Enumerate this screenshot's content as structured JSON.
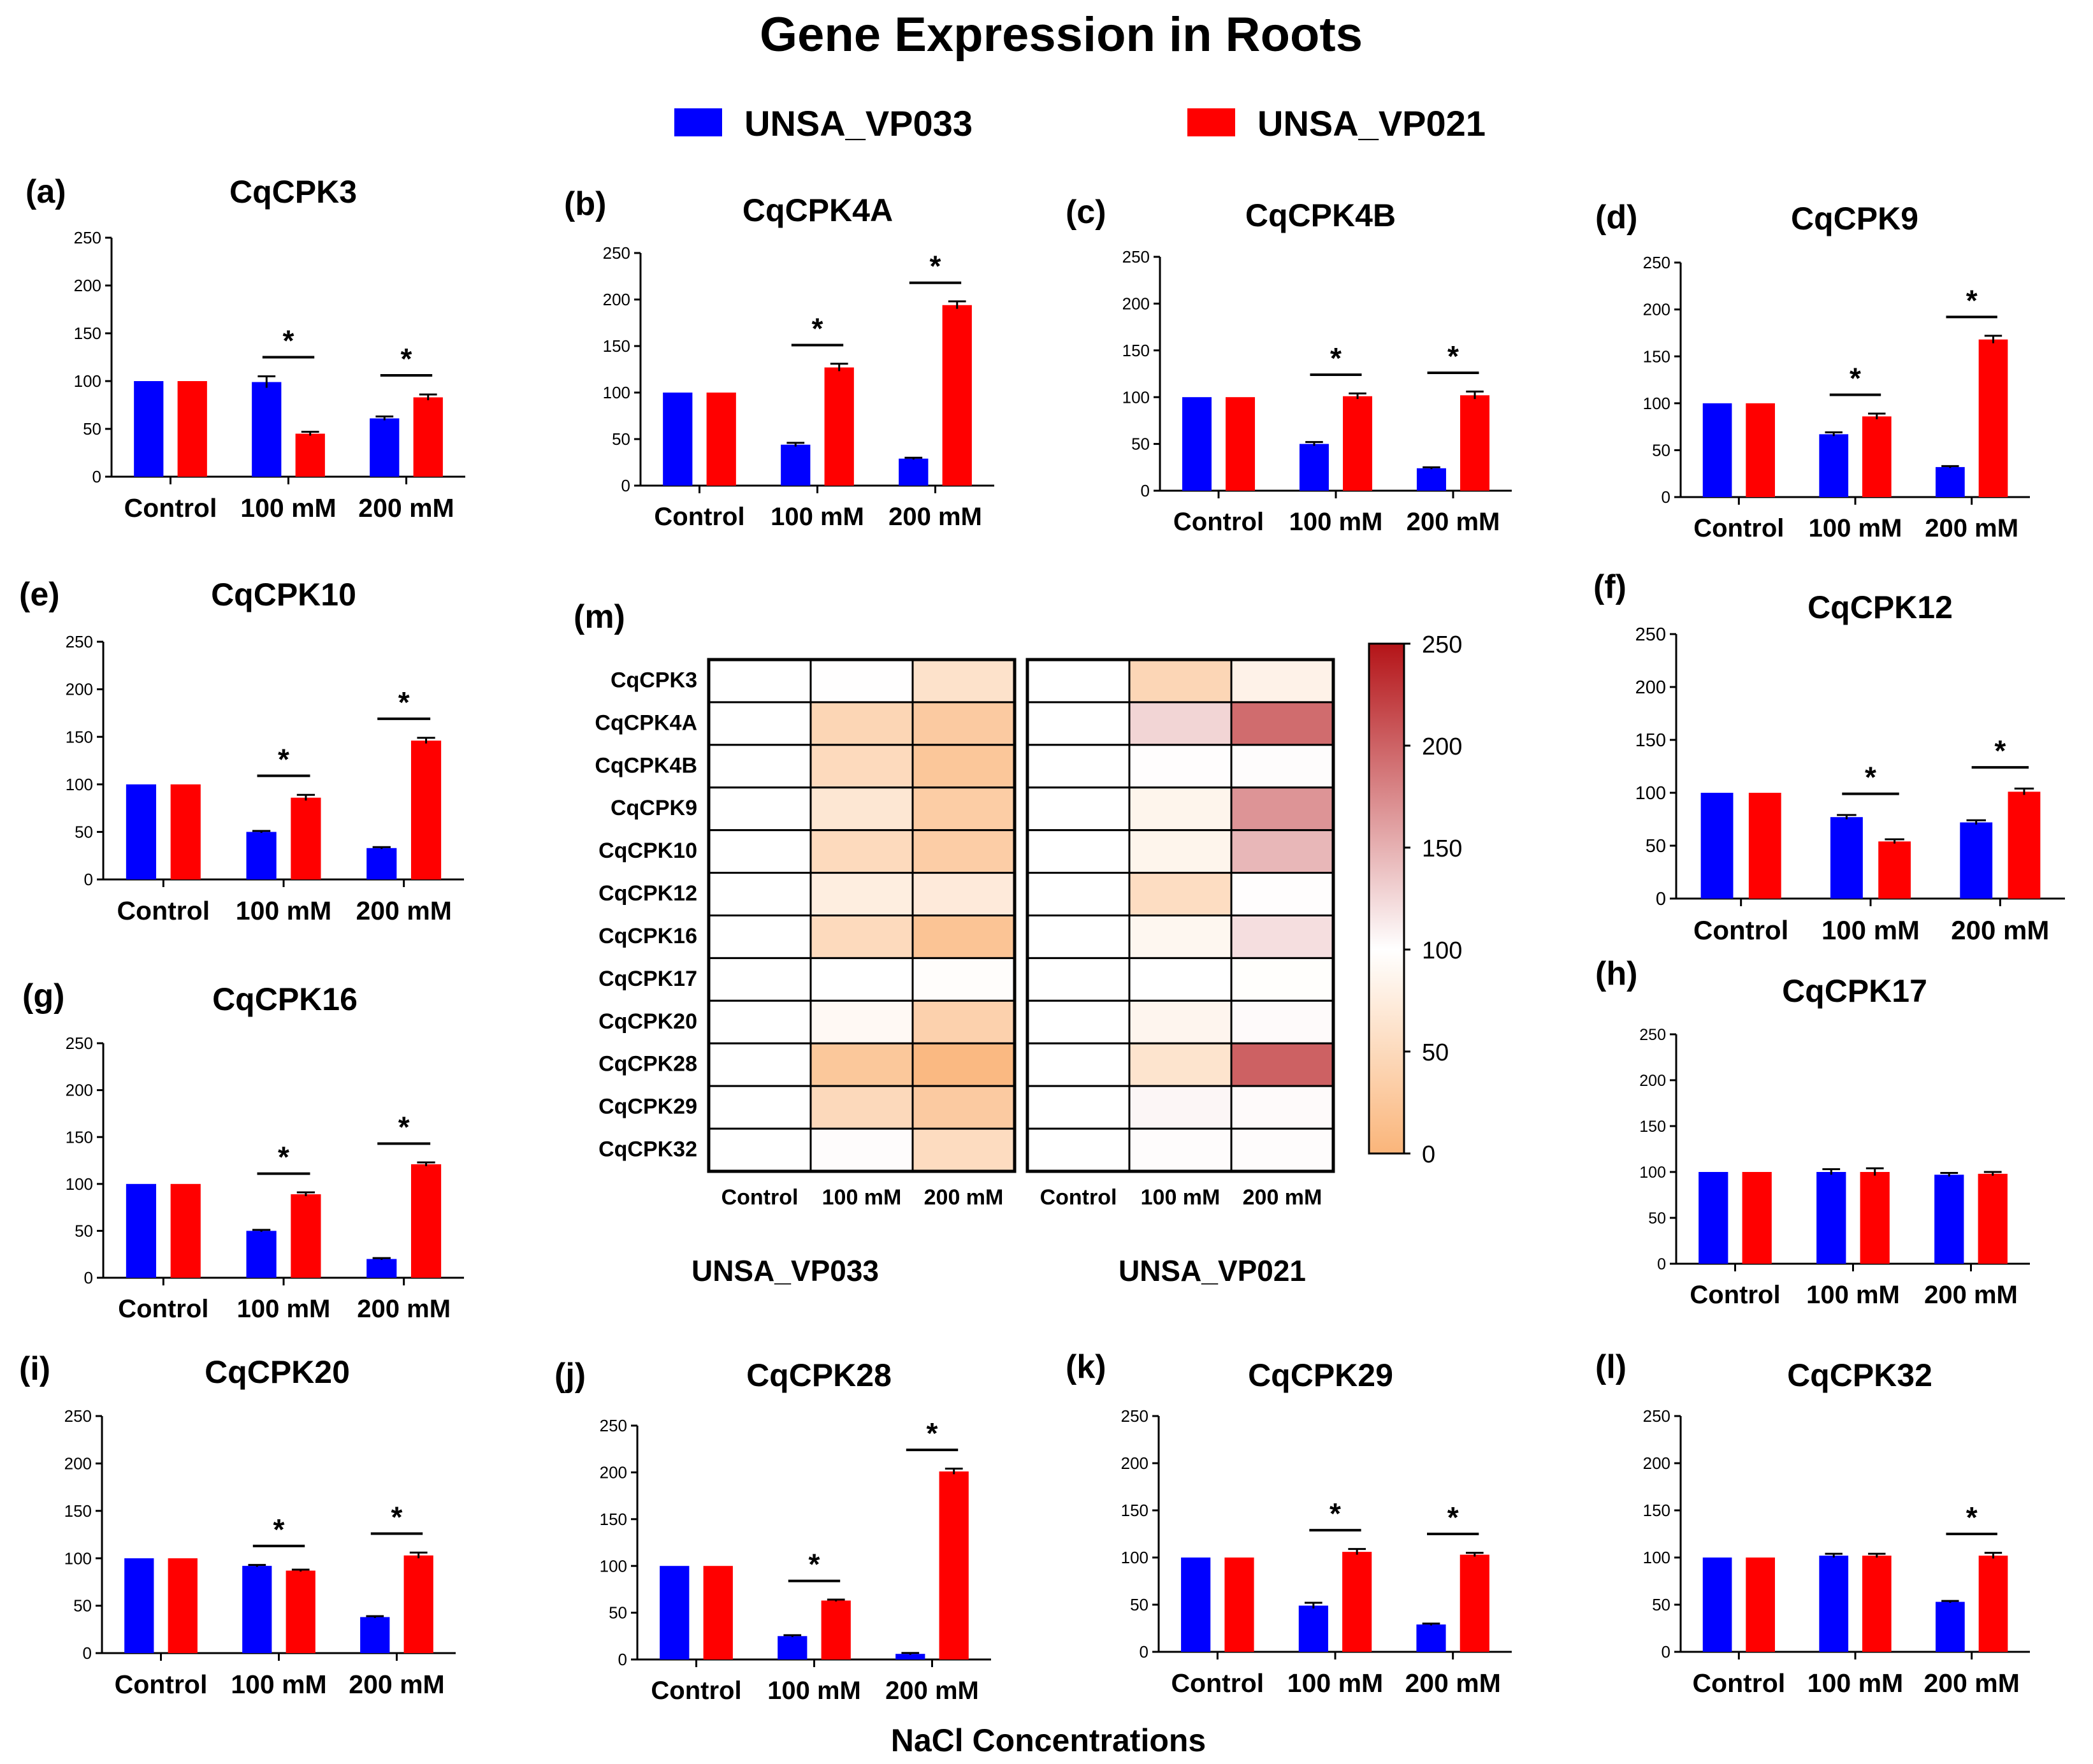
{
  "title": "Gene Expression in Roots",
  "legend": [
    {
      "label": "UNSA_VP033",
      "color": "#0000ff"
    },
    {
      "label": "UNSA_VP021",
      "color": "#ff0000"
    }
  ],
  "colors": {
    "blue": "#0000ff",
    "red": "#ff0000"
  },
  "categories": [
    "Control",
    "100 mM",
    "200 mM"
  ],
  "xlabel": "NaCl Concentrations",
  "y_ticks": [
    0,
    50,
    100,
    150,
    200,
    250
  ],
  "sig_mark": "*",
  "chart_data": [
    {
      "type": "bar",
      "panel": "(a)",
      "title": "CqCPK3",
      "ylim": [
        0,
        250
      ],
      "categories": [
        "Control",
        "100 mM",
        "200 mM"
      ],
      "series": [
        {
          "name": "UNSA_VP033",
          "values": [
            100,
            99,
            61
          ],
          "errors": [
            0,
            6,
            2
          ]
        },
        {
          "name": "UNSA_VP021",
          "values": [
            100,
            45,
            83
          ],
          "errors": [
            0,
            2,
            3
          ]
        }
      ],
      "significant": [
        false,
        true,
        true
      ]
    },
    {
      "type": "bar",
      "panel": "(b)",
      "title": "CqCPK4A",
      "ylim": [
        0,
        250
      ],
      "categories": [
        "Control",
        "100 mM",
        "200 mM"
      ],
      "series": [
        {
          "name": "UNSA_VP033",
          "values": [
            100,
            44,
            29
          ],
          "errors": [
            0,
            2,
            1
          ]
        },
        {
          "name": "UNSA_VP021",
          "values": [
            100,
            127,
            194
          ],
          "errors": [
            0,
            4,
            4
          ]
        }
      ],
      "significant": [
        false,
        true,
        true
      ]
    },
    {
      "type": "bar",
      "panel": "(c)",
      "title": "CqCPK4B",
      "ylim": [
        0,
        250
      ],
      "categories": [
        "Control",
        "100 mM",
        "200 mM"
      ],
      "series": [
        {
          "name": "UNSA_VP033",
          "values": [
            100,
            50,
            24
          ],
          "errors": [
            0,
            2,
            1
          ]
        },
        {
          "name": "UNSA_VP021",
          "values": [
            100,
            101,
            102
          ],
          "errors": [
            0,
            3,
            4
          ]
        }
      ],
      "significant": [
        false,
        true,
        true
      ]
    },
    {
      "type": "bar",
      "panel": "(d)",
      "title": "CqCPK9",
      "ylim": [
        0,
        250
      ],
      "categories": [
        "Control",
        "100 mM",
        "200 mM"
      ],
      "series": [
        {
          "name": "UNSA_VP033",
          "values": [
            100,
            67,
            32
          ],
          "errors": [
            0,
            2,
            1
          ]
        },
        {
          "name": "UNSA_VP021",
          "values": [
            100,
            86,
            168
          ],
          "errors": [
            0,
            3,
            4
          ]
        }
      ],
      "significant": [
        false,
        true,
        true
      ]
    },
    {
      "type": "bar",
      "panel": "(e)",
      "title": "CqCPK10",
      "ylim": [
        0,
        250
      ],
      "categories": [
        "Control",
        "100 mM",
        "200 mM"
      ],
      "series": [
        {
          "name": "UNSA_VP033",
          "values": [
            100,
            50,
            33
          ],
          "errors": [
            0,
            1,
            1
          ]
        },
        {
          "name": "UNSA_VP021",
          "values": [
            100,
            86,
            146
          ],
          "errors": [
            0,
            3,
            3
          ]
        }
      ],
      "significant": [
        false,
        true,
        true
      ]
    },
    {
      "type": "bar",
      "panel": "(f)",
      "title": "CqCPK12",
      "ylim": [
        0,
        250
      ],
      "categories": [
        "Control",
        "100 mM",
        "200 mM"
      ],
      "series": [
        {
          "name": "UNSA_VP033",
          "values": [
            100,
            77,
            72
          ],
          "errors": [
            0,
            2,
            2
          ]
        },
        {
          "name": "UNSA_VP021",
          "values": [
            100,
            54,
            101
          ],
          "errors": [
            0,
            2,
            3
          ]
        }
      ],
      "significant": [
        false,
        true,
        true
      ]
    },
    {
      "type": "bar",
      "panel": "(g)",
      "title": "CqCPK16",
      "ylim": [
        0,
        250
      ],
      "categories": [
        "Control",
        "100 mM",
        "200 mM"
      ],
      "series": [
        {
          "name": "UNSA_VP033",
          "values": [
            100,
            50,
            20
          ],
          "errors": [
            0,
            1,
            1
          ]
        },
        {
          "name": "UNSA_VP021",
          "values": [
            100,
            89,
            121
          ],
          "errors": [
            0,
            2,
            2
          ]
        }
      ],
      "significant": [
        false,
        true,
        true
      ]
    },
    {
      "type": "bar",
      "panel": "(h)",
      "title": "CqCPK17",
      "ylim": [
        0,
        250
      ],
      "categories": [
        "Control",
        "100 mM",
        "200 mM"
      ],
      "series": [
        {
          "name": "UNSA_VP033",
          "values": [
            100,
            100,
            97
          ],
          "errors": [
            0,
            3,
            2
          ]
        },
        {
          "name": "UNSA_VP021",
          "values": [
            100,
            100,
            98
          ],
          "errors": [
            0,
            4,
            2
          ]
        }
      ],
      "significant": [
        false,
        false,
        false
      ]
    },
    {
      "type": "bar",
      "panel": "(i)",
      "title": "CqCPK20",
      "ylim": [
        0,
        250
      ],
      "categories": [
        "Control",
        "100 mM",
        "200 mM"
      ],
      "series": [
        {
          "name": "UNSA_VP033",
          "values": [
            100,
            92,
            38
          ],
          "errors": [
            0,
            1,
            1
          ]
        },
        {
          "name": "UNSA_VP021",
          "values": [
            100,
            87,
            103
          ],
          "errors": [
            0,
            1,
            3
          ]
        }
      ],
      "significant": [
        false,
        true,
        true
      ]
    },
    {
      "type": "bar",
      "panel": "(j)",
      "title": "CqCPK28",
      "ylim": [
        0,
        250
      ],
      "categories": [
        "Control",
        "100 mM",
        "200 mM"
      ],
      "series": [
        {
          "name": "UNSA_VP033",
          "values": [
            100,
            25,
            6
          ],
          "errors": [
            0,
            1,
            1
          ]
        },
        {
          "name": "UNSA_VP021",
          "values": [
            100,
            63,
            201
          ],
          "errors": [
            0,
            1,
            3
          ]
        }
      ],
      "significant": [
        false,
        true,
        true
      ]
    },
    {
      "type": "bar",
      "panel": "(k)",
      "title": "CqCPK29",
      "ylim": [
        0,
        250
      ],
      "categories": [
        "Control",
        "100 mM",
        "200 mM"
      ],
      "series": [
        {
          "name": "UNSA_VP033",
          "values": [
            100,
            49,
            29
          ],
          "errors": [
            0,
            3,
            1
          ]
        },
        {
          "name": "UNSA_VP021",
          "values": [
            100,
            106,
            103
          ],
          "errors": [
            0,
            3,
            2
          ]
        }
      ],
      "significant": [
        false,
        true,
        true
      ]
    },
    {
      "type": "bar",
      "panel": "(l)",
      "title": "CqCPK32",
      "ylim": [
        0,
        250
      ],
      "categories": [
        "Control",
        "100 mM",
        "200 mM"
      ],
      "series": [
        {
          "name": "UNSA_VP033",
          "values": [
            100,
            102,
            53
          ],
          "errors": [
            0,
            2,
            1
          ]
        },
        {
          "name": "UNSA_VP021",
          "values": [
            100,
            102,
            102
          ],
          "errors": [
            0,
            2,
            3
          ]
        }
      ],
      "significant": [
        false,
        false,
        true
      ]
    },
    {
      "type": "heatmap",
      "panel": "(m)",
      "genes": [
        "CqCPK3",
        "CqCPK4A",
        "CqCPK4B",
        "CqCPK9",
        "CqCPK10",
        "CqCPK12",
        "CqCPK16",
        "CqCPK17",
        "CqCPK20",
        "CqCPK28",
        "CqCPK29",
        "CqCPK32"
      ],
      "groups": [
        {
          "name": "UNSA_VP033",
          "columns": [
            "Control",
            "100 mM",
            "200 mM"
          ]
        },
        {
          "name": "UNSA_VP021",
          "columns": [
            "Control",
            "100 mM",
            "200 mM"
          ]
        }
      ],
      "values": [
        [
          100,
          99,
          61,
          100,
          45,
          83
        ],
        [
          100,
          44,
          29,
          100,
          127,
          194
        ],
        [
          100,
          50,
          24,
          100,
          101,
          102
        ],
        [
          100,
          67,
          32,
          100,
          86,
          168
        ],
        [
          100,
          50,
          33,
          100,
          86,
          146
        ],
        [
          100,
          77,
          72,
          100,
          54,
          101
        ],
        [
          100,
          50,
          20,
          100,
          89,
          121
        ],
        [
          100,
          100,
          97,
          100,
          100,
          98
        ],
        [
          100,
          92,
          38,
          100,
          87,
          103
        ],
        [
          100,
          25,
          6,
          100,
          63,
          201
        ],
        [
          100,
          49,
          29,
          100,
          106,
          103
        ],
        [
          100,
          102,
          53,
          100,
          102,
          102
        ]
      ],
      "colorbar": {
        "range": [
          0,
          250
        ],
        "ticks": [
          0,
          50,
          100,
          150,
          200,
          250
        ],
        "stops": [
          "#fab57a",
          "#ffffff",
          "#b41418"
        ]
      }
    }
  ]
}
